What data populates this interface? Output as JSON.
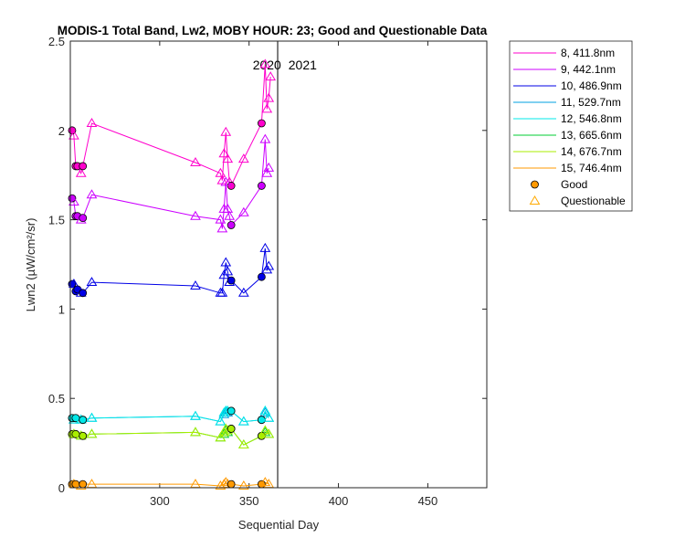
{
  "chart_data": {
    "type": "scatter",
    "title": "MODIS-1 Total Band, Lw2, MOBY HOUR: 23;  Good and Questionable Data",
    "xlabel": "Sequential Day",
    "ylabel": "Lwn2 (µW/cm²/sr)",
    "xlim": [
      250,
      483
    ],
    "ylim": [
      0,
      2.5
    ],
    "xticks": [
      300,
      350,
      400,
      450
    ],
    "yticks": [
      0,
      0.5,
      1,
      1.5,
      2,
      2.5
    ],
    "xtick_labels": [
      "300",
      "350",
      "400",
      "450"
    ],
    "ytick_labels": [
      "0",
      "0.5",
      "1",
      "1.5",
      "2",
      "2.5"
    ],
    "year_divider": 366,
    "year_labels": [
      {
        "text": "2020",
        "x": 360
      },
      {
        "text": "2021",
        "x": 372
      }
    ],
    "marker_legend": [
      {
        "label": "Good",
        "marker": "circle"
      },
      {
        "label": "Questionable",
        "marker": "triangle"
      }
    ],
    "series": [
      {
        "name": "8, 411.8nm",
        "color": "#ff00cc",
        "x": [
          251,
          252,
          253,
          254,
          256,
          257,
          262,
          320,
          334,
          335,
          336,
          337,
          338,
          339,
          340,
          347,
          357,
          359,
          360,
          361,
          362
        ],
        "y": [
          2.0,
          1.97,
          1.8,
          1.8,
          1.76,
          1.8,
          2.04,
          1.82,
          1.76,
          1.72,
          1.87,
          1.99,
          1.84,
          1.71,
          1.69,
          1.84,
          2.04,
          2.37,
          2.12,
          2.18,
          2.3
        ],
        "q": [
          0,
          1,
          0,
          0,
          1,
          0,
          1,
          1,
          1,
          1,
          1,
          1,
          1,
          1,
          0,
          1,
          0,
          1,
          1,
          1,
          1
        ]
      },
      {
        "name": "9, 442.1nm",
        "color": "#cc00ff",
        "x": [
          251,
          252,
          253,
          254,
          256,
          257,
          262,
          320,
          334,
          335,
          336,
          337,
          338,
          339,
          340,
          347,
          357,
          359,
          360,
          361
        ],
        "y": [
          1.62,
          1.6,
          1.52,
          1.52,
          1.5,
          1.51,
          1.64,
          1.52,
          1.5,
          1.45,
          1.56,
          1.71,
          1.56,
          1.52,
          1.47,
          1.54,
          1.69,
          1.95,
          1.76,
          1.79
        ],
        "q": [
          0,
          1,
          0,
          0,
          1,
          0,
          1,
          1,
          1,
          1,
          1,
          1,
          1,
          1,
          0,
          1,
          0,
          1,
          1,
          1
        ]
      },
      {
        "name": "10, 486.9nm",
        "color": "#0000e6",
        "x": [
          251,
          252,
          253,
          254,
          256,
          257,
          262,
          320,
          334,
          335,
          336,
          337,
          338,
          339,
          340,
          347,
          357,
          359,
          360,
          361
        ],
        "y": [
          1.14,
          1.14,
          1.1,
          1.11,
          1.09,
          1.09,
          1.15,
          1.13,
          1.09,
          1.09,
          1.19,
          1.26,
          1.21,
          1.15,
          1.16,
          1.09,
          1.18,
          1.34,
          1.22,
          1.24
        ],
        "q": [
          0,
          1,
          0,
          0,
          1,
          0,
          1,
          1,
          1,
          1,
          1,
          1,
          1,
          1,
          0,
          1,
          0,
          1,
          1,
          1
        ]
      },
      {
        "name": "11, 529.7nm",
        "color": "#00a0e0",
        "x": [
          251,
          252,
          253,
          256,
          257,
          262,
          320,
          334,
          336,
          337,
          338,
          340,
          347,
          357,
          359,
          361
        ],
        "y": [
          0.39,
          0.38,
          0.39,
          0.38,
          0.38,
          0.39,
          0.4,
          0.37,
          0.41,
          0.42,
          0.42,
          0.43,
          0.37,
          0.38,
          0.42,
          0.39
        ],
        "q": [
          0,
          1,
          0,
          1,
          0,
          1,
          1,
          1,
          1,
          1,
          1,
          0,
          1,
          0,
          1,
          1
        ]
      },
      {
        "name": "12, 546.8nm",
        "color": "#00e8e8",
        "x": [
          251,
          252,
          253,
          256,
          257,
          262,
          320,
          334,
          336,
          337,
          338,
          340,
          347,
          357,
          359,
          361
        ],
        "y": [
          0.39,
          0.38,
          0.39,
          0.38,
          0.38,
          0.39,
          0.4,
          0.37,
          0.42,
          0.43,
          0.43,
          0.43,
          0.37,
          0.38,
          0.43,
          0.39
        ],
        "q": [
          0,
          1,
          0,
          1,
          0,
          1,
          1,
          1,
          1,
          1,
          1,
          0,
          1,
          0,
          1,
          1
        ]
      },
      {
        "name": "13, 665.6nm",
        "color": "#00cc33",
        "x": [
          251,
          252,
          253,
          256,
          257,
          262,
          320,
          334,
          336,
          337,
          338,
          340,
          347,
          357,
          359,
          361
        ],
        "y": [
          0.3,
          0.3,
          0.3,
          0.29,
          0.29,
          0.3,
          0.31,
          0.28,
          0.3,
          0.32,
          0.31,
          0.33,
          0.24,
          0.29,
          0.31,
          0.3
        ],
        "q": [
          0,
          1,
          0,
          1,
          0,
          1,
          1,
          1,
          1,
          1,
          1,
          0,
          1,
          0,
          1,
          1
        ]
      },
      {
        "name": "14, 676.7nm",
        "color": "#aaee00",
        "x": [
          251,
          252,
          253,
          256,
          257,
          262,
          320,
          334,
          336,
          337,
          338,
          340,
          347,
          357,
          359,
          361
        ],
        "y": [
          0.3,
          0.3,
          0.3,
          0.29,
          0.29,
          0.3,
          0.31,
          0.28,
          0.31,
          0.33,
          0.32,
          0.33,
          0.24,
          0.29,
          0.32,
          0.3
        ],
        "q": [
          0,
          1,
          0,
          1,
          0,
          1,
          1,
          1,
          1,
          1,
          1,
          0,
          1,
          0,
          1,
          1
        ]
      },
      {
        "name": "15, 746.4nm",
        "color": "#ff9900",
        "x": [
          251,
          252,
          253,
          256,
          257,
          262,
          320,
          334,
          336,
          337,
          338,
          340,
          347,
          357,
          359,
          361
        ],
        "y": [
          0.02,
          0.02,
          0.02,
          0.01,
          0.02,
          0.02,
          0.02,
          0.01,
          0.02,
          0.03,
          0.02,
          0.02,
          0.01,
          0.02,
          0.03,
          0.02
        ],
        "q": [
          0,
          1,
          0,
          1,
          0,
          1,
          1,
          1,
          1,
          1,
          1,
          0,
          1,
          0,
          1,
          1
        ]
      }
    ]
  }
}
